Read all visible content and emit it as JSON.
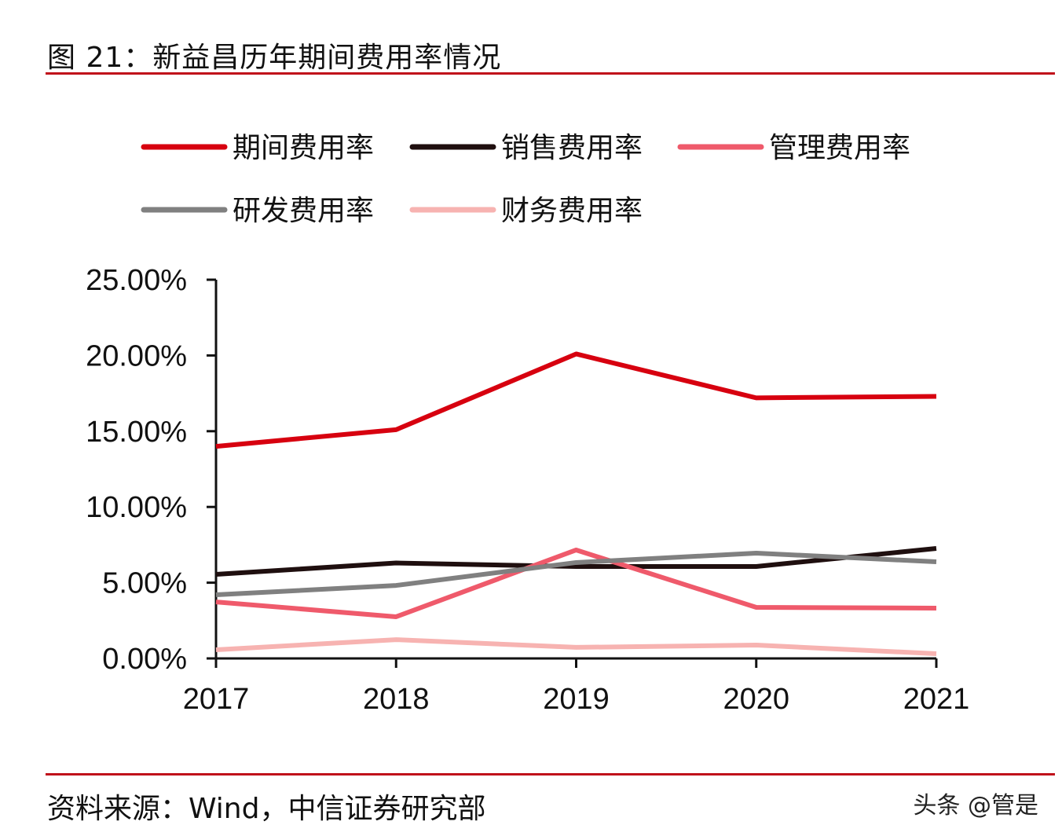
{
  "title": "图 21：新益昌历年期间费用率情况",
  "source": "资料来源：Wind，中信证券研究部",
  "watermark": "头条 @管是",
  "chart_data": {
    "type": "line",
    "title": "",
    "xlabel": "",
    "ylabel": "",
    "categories": [
      "2017",
      "2018",
      "2019",
      "2020",
      "2021"
    ],
    "ylim": [
      0,
      25
    ],
    "yticks": [
      "0.00%",
      "5.00%",
      "10.00%",
      "15.00%",
      "20.00%",
      "25.00%"
    ],
    "grid": false,
    "legend_position": "top",
    "series": [
      {
        "name": "期间费用率",
        "color": "#d7000f",
        "values": [
          14.0,
          15.1,
          20.1,
          17.2,
          17.3
        ]
      },
      {
        "name": "销售费用率",
        "color": "#1f0f0f",
        "values": [
          5.55,
          6.3,
          6.07,
          6.07,
          7.26
        ]
      },
      {
        "name": "管理费用率",
        "color": "#ef5a6b",
        "values": [
          3.73,
          2.75,
          7.16,
          3.37,
          3.32
        ]
      },
      {
        "name": "研发费用率",
        "color": "#808080",
        "values": [
          4.2,
          4.82,
          6.33,
          6.95,
          6.38
        ]
      },
      {
        "name": "财务费用率",
        "color": "#f7b3b1",
        "values": [
          0.57,
          1.24,
          0.73,
          0.88,
          0.31
        ]
      }
    ]
  }
}
